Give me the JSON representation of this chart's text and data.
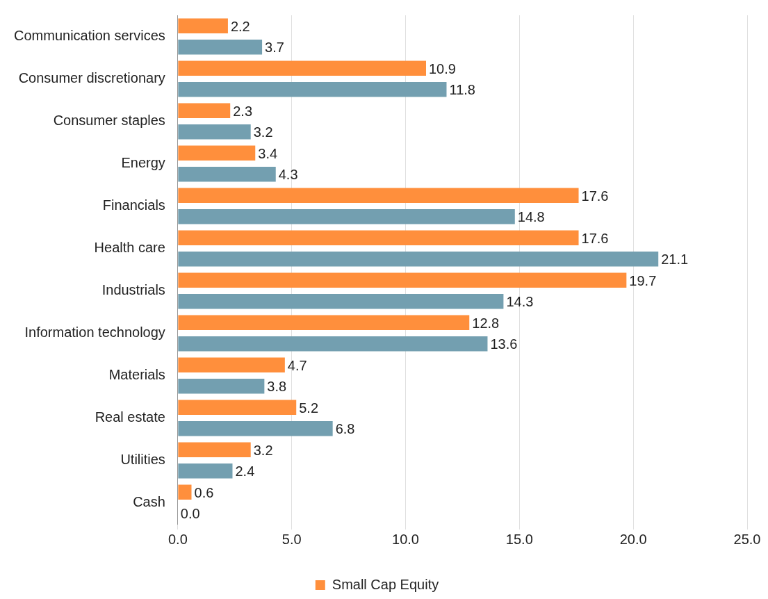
{
  "chart_data": {
    "type": "bar",
    "orientation": "horizontal",
    "categories": [
      "Communication services",
      "Consumer discretionary",
      "Consumer staples",
      "Energy",
      "Financials",
      "Health care",
      "Industrials",
      "Information technology",
      "Materials",
      "Real estate",
      "Utilities",
      "Cash"
    ],
    "series": [
      {
        "name": "Small Cap Equity",
        "color": "#ff8f3c",
        "values": [
          2.2,
          10.9,
          2.3,
          3.4,
          17.6,
          17.6,
          19.7,
          12.8,
          4.7,
          5.2,
          3.2,
          0.6
        ],
        "value_labels": [
          "2.2",
          "10.9",
          "2.3",
          "3.4",
          "17.6",
          "17.6",
          "19.7",
          "12.8",
          "4.7",
          "5.2",
          "3.2",
          "0.6"
        ]
      },
      {
        "color": "#739fb0",
        "values": [
          3.7,
          11.8,
          3.2,
          4.3,
          14.8,
          21.1,
          14.3,
          13.6,
          3.8,
          6.8,
          2.4,
          0.0
        ],
        "value_labels": [
          "3.7",
          "11.8",
          "3.2",
          "4.3",
          "14.8",
          "21.1",
          "14.3",
          "13.6",
          "3.8",
          "6.8",
          "2.4",
          "0.0"
        ]
      }
    ],
    "xlim": [
      0,
      25
    ],
    "xticks": [
      {
        "value": 0,
        "label": "0.0"
      },
      {
        "value": 5,
        "label": "5.0"
      },
      {
        "value": 10,
        "label": "10.0"
      },
      {
        "value": 15,
        "label": "15.0"
      },
      {
        "value": 20,
        "label": "20.0"
      },
      {
        "value": 25,
        "label": "25.0"
      }
    ],
    "grid": "x",
    "legend": "bottom"
  }
}
